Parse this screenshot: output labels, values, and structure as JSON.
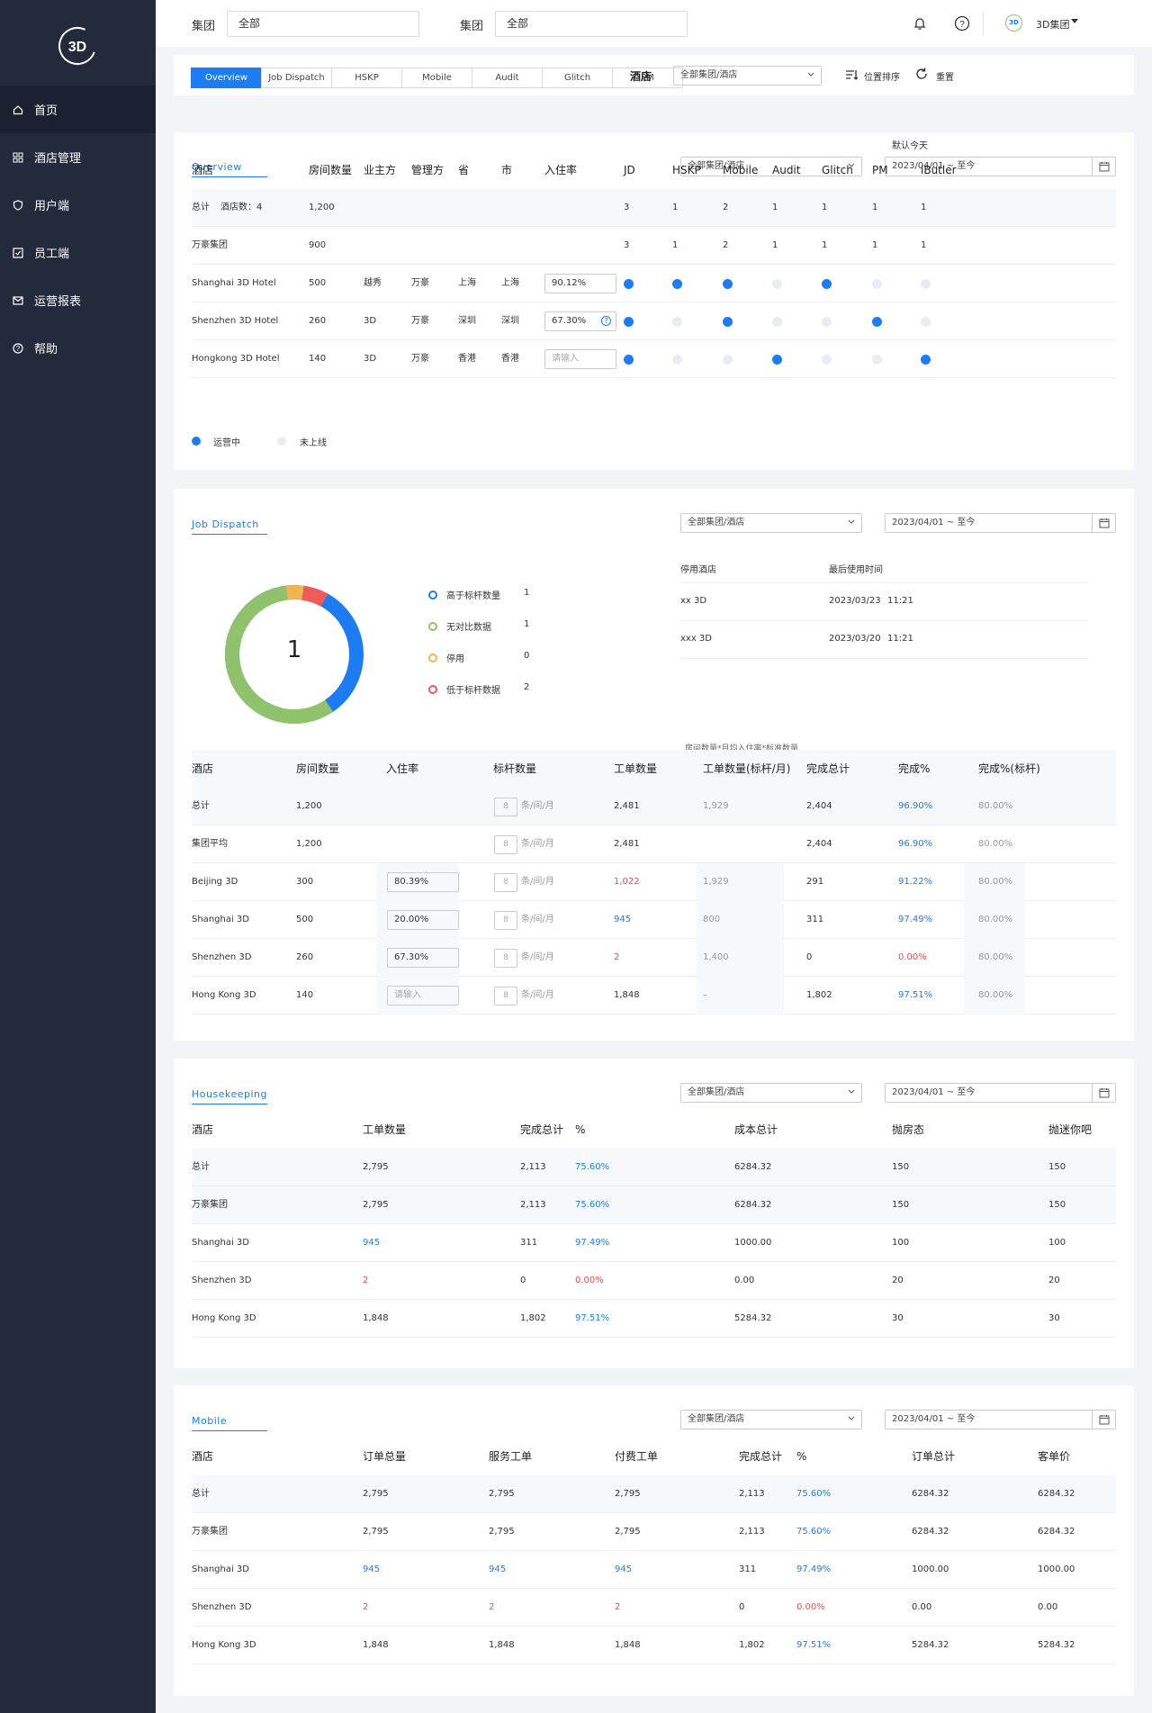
{
  "sidebar": {
    "logo": "3D",
    "items": [
      {
        "label": "首页",
        "icon": "home-icon"
      },
      {
        "label": "酒店管理",
        "icon": "grid-icon"
      },
      {
        "label": "用户端",
        "icon": "shield-icon"
      },
      {
        "label": "员工端",
        "icon": "checkbox-icon"
      },
      {
        "label": "运营报表",
        "icon": "mail-icon"
      },
      {
        "label": "帮助",
        "icon": "help-icon"
      }
    ]
  },
  "topbar": {
    "group_label_1": "集团",
    "group_value_1": "全部",
    "group_label_2": "集团",
    "group_value_2": "全部",
    "user": "3D集团",
    "avatar": "3D"
  },
  "filterbar": {
    "tabs": [
      "Overview",
      "Job Dispatch",
      "HSKP",
      "Mobile",
      "Audit",
      "Glitch",
      "PM"
    ],
    "active_tab": "Overview",
    "hotel_label": "酒店",
    "hotel_select": "全部集团/酒店",
    "sort_label": "位置排序",
    "reset_label": "重置"
  },
  "overview": {
    "title": "Overview",
    "default_today": "默认今天",
    "select": "全部集团/酒店",
    "date": "2023/04/01 ~ 至今",
    "columns": [
      "酒店",
      "房间数量",
      "业主方",
      "管理方",
      "省",
      "市",
      "入住率",
      "JD",
      "HSKP",
      "Mobile",
      "Audit",
      "Glitch",
      "PM",
      "iButler"
    ],
    "total_row": {
      "name": "总计",
      "count_label": "酒店数：4",
      "rooms": "1,200",
      "vals": [
        "3",
        "1",
        "2",
        "1",
        "1",
        "1",
        "1"
      ]
    },
    "group_row": {
      "name": "万豪集团",
      "rooms": "900",
      "vals": [
        "3",
        "1",
        "2",
        "1",
        "1",
        "1",
        "1"
      ]
    },
    "hotels": [
      {
        "name": "Shanghai 3D Hotel",
        "rooms": "500",
        "owner": "越秀",
        "manager": "万豪",
        "province": "上海",
        "city": "上海",
        "occupancy": "90.12%",
        "status": [
          1,
          1,
          1,
          0,
          1,
          0,
          0
        ]
      },
      {
        "name": "Shenzhen 3D Hotel",
        "rooms": "260",
        "owner": "3D",
        "manager": "万豪",
        "province": "深圳",
        "city": "深圳",
        "occupancy": "67.30%",
        "status": [
          1,
          0,
          1,
          0,
          0,
          1,
          0
        ]
      },
      {
        "name": "Hongkong 3D Hotel",
        "rooms": "140",
        "owner": "3D",
        "manager": "万豪",
        "province": "香港",
        "city": "香港",
        "occupancy": "请输入",
        "status": [
          1,
          0,
          0,
          1,
          0,
          0,
          1
        ]
      }
    ],
    "legend_on": "运营中",
    "legend_off": "未上线"
  },
  "job_dispatch": {
    "title": "Job Dispatch",
    "select": "全部集团/酒店",
    "date": "2023/04/01 ~ 至今",
    "donut_center": "1",
    "donut_legend": [
      {
        "label": "高于标杆数量",
        "value": "1",
        "color": "#1e7cf2"
      },
      {
        "label": "无对比数据",
        "value": "1",
        "color": "#8fc26a"
      },
      {
        "label": "停用",
        "value": "0",
        "color": "#f2b44c"
      },
      {
        "label": "低于标杆数据",
        "value": "2",
        "color": "#ef5a5a"
      }
    ],
    "disabled_header": [
      "停用酒店",
      "最后使用时间"
    ],
    "disabled": [
      {
        "hotel": "xx 3D",
        "date": "2023/03/23",
        "time": "11:21"
      },
      {
        "hotel": "xxx 3D",
        "date": "2023/03/20",
        "time": "11:21"
      }
    ],
    "formula_note": "房间数量*月均入住率*标准数量",
    "columns": [
      "酒店",
      "房间数量",
      "入住率",
      "标杆数量",
      "工单数量",
      "工单数量(标杆/月)",
      "完成总计",
      "完成%",
      "完成%(标杆)"
    ],
    "unit": "条/间/月",
    "rows": [
      {
        "name": "总计",
        "rooms": "1,200",
        "occ": "",
        "bench": "8",
        "orders": "2,481",
        "orders_cls": "",
        "bench_month": "1,929",
        "done": "2,404",
        "pct": "96.90%",
        "pct_cls": "blue",
        "pct_bench": "80.00%",
        "shade": true
      },
      {
        "name": "集团平均",
        "rooms": "1,200",
        "occ": "",
        "bench": "8",
        "orders": "2,481",
        "orders_cls": "",
        "bench_month": "",
        "done": "2,404",
        "pct": "96.90%",
        "pct_cls": "blue",
        "pct_bench": "80.00%",
        "shade": false
      },
      {
        "name": "Beijing 3D",
        "rooms": "300",
        "occ": "80.39%",
        "bench": "8",
        "orders": "1,022",
        "orders_cls": "red",
        "bench_month": "1,929",
        "done": "291",
        "pct": "91.22%",
        "pct_cls": "blue",
        "pct_bench": "80.00%",
        "shade": false
      },
      {
        "name": "Shanghai 3D",
        "rooms": "500",
        "occ": "20.00%",
        "bench": "8",
        "orders": "945",
        "orders_cls": "blue",
        "bench_month": "800",
        "done": "311",
        "pct": "97.49%",
        "pct_cls": "blue",
        "pct_bench": "80.00%",
        "shade": false
      },
      {
        "name": "Shenzhen 3D",
        "rooms": "260",
        "occ": "67.30%",
        "bench": "8",
        "orders": "2",
        "orders_cls": "red",
        "bench_month": "1,400",
        "done": "0",
        "pct": "0.00%",
        "pct_cls": "red",
        "pct_bench": "80.00%",
        "shade": false
      },
      {
        "name": "Hong Kong 3D",
        "rooms": "140",
        "occ": "请输入",
        "bench": "8",
        "orders": "1,848",
        "orders_cls": "",
        "bench_month": "–",
        "done": "1,802",
        "pct": "97.51%",
        "pct_cls": "blue",
        "pct_bench": "80.00%",
        "shade": false
      }
    ]
  },
  "housekeeping": {
    "title": "Housekeeping",
    "select": "全部集团/酒店",
    "date": "2023/04/01 ~ 至今",
    "columns": [
      "酒店",
      "工单数量",
      "完成总计",
      "%",
      "成本总计",
      "抛房态",
      "抛迷你吧"
    ],
    "rows": [
      {
        "name": "总计",
        "orders": "2,795",
        "orders_cls": "",
        "done": "2,113",
        "pct": "75.60%",
        "pct_cls": "blue",
        "cost": "6284.32",
        "a": "150",
        "b": "150",
        "shade": true
      },
      {
        "name": "万豪集团",
        "orders": "2,795",
        "orders_cls": "",
        "done": "2,113",
        "pct": "75.60%",
        "pct_cls": "blue",
        "cost": "6284.32",
        "a": "150",
        "b": "150",
        "shade": true
      },
      {
        "name": "Shanghai 3D",
        "orders": "945",
        "orders_cls": "blue",
        "done": "311",
        "pct": "97.49%",
        "pct_cls": "blue",
        "cost": "1000.00",
        "a": "100",
        "b": "100",
        "shade": false
      },
      {
        "name": "Shenzhen 3D",
        "orders": "2",
        "orders_cls": "red",
        "done": "0",
        "pct": "0.00%",
        "pct_cls": "red",
        "cost": "0.00",
        "a": "20",
        "b": "20",
        "shade": false
      },
      {
        "name": "Hong Kong 3D",
        "orders": "1,848",
        "orders_cls": "",
        "done": "1,802",
        "pct": "97.51%",
        "pct_cls": "blue",
        "cost": "5284.32",
        "a": "30",
        "b": "30",
        "shade": false
      }
    ]
  },
  "mobile": {
    "title": "Mobile",
    "select": "全部集团/酒店",
    "date": "2023/04/01 ~ 至今",
    "columns": [
      "酒店",
      "订单总量",
      "服务工单",
      "付费工单",
      "完成总计",
      "%",
      "订单总计",
      "客单价"
    ],
    "rows": [
      {
        "name": "总计",
        "total": "2,795",
        "service": "2,795",
        "paid": "2,795",
        "cls": "",
        "done": "2,113",
        "pct": "75.60%",
        "pct_cls": "blue",
        "sum": "6284.32",
        "avg": "6284.32",
        "shade": true
      },
      {
        "name": "万豪集团",
        "total": "2,795",
        "service": "2,795",
        "paid": "2,795",
        "cls": "",
        "done": "2,113",
        "pct": "75.60%",
        "pct_cls": "blue",
        "sum": "6284.32",
        "avg": "6284.32",
        "shade": false
      },
      {
        "name": "Shanghai 3D",
        "total": "945",
        "service": "945",
        "paid": "945",
        "cls": "blue",
        "done": "311",
        "pct": "97.49%",
        "pct_cls": "blue",
        "sum": "1000.00",
        "avg": "1000.00",
        "shade": false
      },
      {
        "name": "Shenzhen 3D",
        "total": "2",
        "service": "2",
        "paid": "2",
        "cls": "red",
        "done": "0",
        "pct": "0.00%",
        "pct_cls": "red",
        "sum": "0.00",
        "avg": "0.00",
        "shade": false
      },
      {
        "name": "Hong Kong 3D",
        "total": "1,848",
        "service": "1,848",
        "paid": "1,848",
        "cls": "",
        "done": "1,802",
        "pct": "97.51%",
        "pct_cls": "blue",
        "sum": "5284.32",
        "avg": "5284.32",
        "shade": false
      }
    ]
  },
  "colors": {
    "accent": "#1e7cf2",
    "sidebar": "#232a3b",
    "red": "#f04848",
    "green": "#8fc26a",
    "orange": "#f2b44c"
  }
}
